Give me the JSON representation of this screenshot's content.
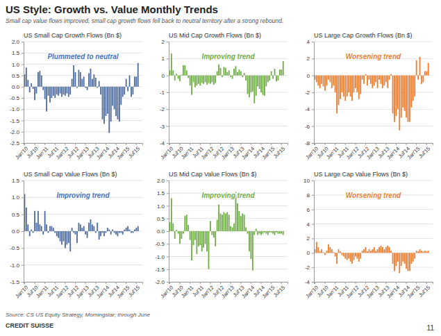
{
  "title": "US Style: Growth vs. Value Monthly Trends",
  "subtitle": "Small cap value flows improved, small cap growth flows fell back to neutral territory after a strong rebound.",
  "source": "Source: CS US Equity Strategy, Morningstar; through June",
  "page_number": "11",
  "brand": "CREDIT SUISSE",
  "chart_data": [
    {
      "type": "bar",
      "title": "US Small Cap Growth Flows (Bn $)",
      "annotations": [
        {
          "text": "Plummeted to neutral",
          "color": "#4472C4"
        }
      ],
      "color": "#4E6D9E",
      "grid": true,
      "categories": [
        "Jan'10",
        null,
        null,
        null,
        null,
        null,
        "Jul'10",
        null,
        null,
        null,
        null,
        null,
        "Jan'11",
        null,
        null,
        null,
        null,
        null,
        "Jul'11",
        null,
        null,
        null,
        null,
        null,
        "Jan'12",
        null,
        null,
        null,
        null,
        null,
        "Jul'12",
        null,
        null,
        null,
        null,
        null,
        "Jan'13",
        null,
        null,
        null,
        null,
        null,
        "Jul'13",
        null,
        null,
        null,
        null,
        null,
        "Jan'14",
        null,
        null,
        null,
        null,
        null,
        "Jul'14",
        null,
        null,
        null,
        null,
        null,
        "Jan'15",
        null,
        null,
        null,
        null,
        null,
        "Jul'15",
        null,
        null,
        null
      ],
      "values": [
        0.55,
        0.85,
        0.3,
        -0.25,
        0.15,
        -0.1,
        -0.6,
        -0.3,
        0.65,
        0.7,
        0.5,
        -0.15,
        -0.55,
        -1.1,
        -0.4,
        -0.7,
        -0.5,
        -0.4,
        -0.5,
        -0.35,
        -0.4,
        -0.3,
        -0.45,
        -0.35,
        -0.4,
        -0.3,
        -0.45,
        -0.35,
        0.35,
        0.95,
        0.65,
        -0.05,
        0.75,
        0.65,
        0.35,
        0.45,
        -0.05,
        -0.15,
        0.6,
        0.8,
        0.35,
        0.55,
        0.4,
        -0.05,
        0.25,
        -0.35,
        -1.45,
        -1.65,
        -1.3,
        -1.2,
        -2.05,
        -1.55,
        -0.85,
        -1.0,
        -1.3,
        -1.45,
        -1.55,
        -0.8,
        -0.45,
        -0.35,
        0.35,
        -0.2,
        0.5,
        -0.45,
        -0.35,
        0.45,
        0.45,
        1.05,
        0.0,
        0.0
      ],
      "ylim": [
        -2.5,
        2.0
      ],
      "yticks": [
        -2.5,
        {
          "value": -2.0,
          "label": "-2.0"
        },
        -1.5,
        {
          "value": -1.0,
          "label": "-1.0"
        },
        -0.5,
        {
          "value": 0.0,
          "label": "0.0"
        },
        0.5,
        {
          "value": 1.0,
          "label": "1.0"
        },
        1.5,
        {
          "value": 2.0,
          "label": "2.0"
        }
      ]
    },
    {
      "type": "bar",
      "title": "US Mid Cap Growth Flows (Bn $)",
      "annotations": [
        {
          "text": "Improving trend",
          "color": "#70AD47"
        }
      ],
      "color": "#70AD47",
      "grid": true,
      "categories": [
        "Jan'10",
        null,
        null,
        null,
        null,
        null,
        "Jul'10",
        null,
        null,
        null,
        null,
        null,
        "Jan'11",
        null,
        null,
        null,
        null,
        null,
        "Jul'11",
        null,
        null,
        null,
        null,
        null,
        "Jan'12",
        null,
        null,
        null,
        null,
        null,
        "Jul'12",
        null,
        null,
        null,
        null,
        null,
        "Jan'13",
        null,
        null,
        null,
        null,
        null,
        "Jul'13",
        null,
        null,
        null,
        null,
        null,
        "Jan'14",
        null,
        null,
        null,
        null,
        null,
        "Jul'14",
        null,
        null,
        null,
        null,
        null,
        "Jan'15",
        null,
        null,
        null,
        null,
        null,
        "Jul'15",
        null,
        null,
        null
      ],
      "values": [
        0.3,
        1.3,
        0.3,
        -0.3,
        0.1,
        -0.2,
        -0.35,
        0.05,
        0.6,
        0.6,
        0.3,
        -0.15,
        -0.6,
        -1.15,
        -0.4,
        -0.7,
        -0.6,
        -0.5,
        -0.6,
        -0.45,
        -0.5,
        -0.4,
        -0.55,
        -0.45,
        -0.5,
        -0.4,
        -0.55,
        -0.45,
        0.25,
        0.65,
        0.45,
        -0.1,
        0.5,
        0.45,
        0.2,
        0.3,
        -0.1,
        -0.2,
        0.4,
        0.55,
        0.2,
        0.35,
        0.25,
        -0.1,
        0.15,
        -0.3,
        -1.1,
        -1.3,
        -1.0,
        -0.95,
        -1.65,
        -1.2,
        -0.65,
        -0.8,
        -1.0,
        -1.15,
        -1.2,
        -0.65,
        -0.4,
        -0.3,
        0.25,
        -0.2,
        0.4,
        -0.35,
        -0.3,
        0.35,
        0.35,
        0.85,
        0.0,
        0.0
      ],
      "ylim": [
        -4.0,
        2.0
      ],
      "yticks": [
        -4,
        -3,
        -2,
        -1,
        0,
        1,
        2
      ]
    },
    {
      "type": "bar",
      "title": "US Large Cap Growth Flows (Bn $)",
      "annotations": [
        {
          "text": "Worsening trend",
          "color": "#ED7D31"
        }
      ],
      "color": "#ED7D31",
      "grid": true,
      "categories": [
        "Jan'10",
        null,
        null,
        null,
        null,
        null,
        "Jul'10",
        null,
        null,
        null,
        null,
        null,
        "Jan'11",
        null,
        null,
        null,
        null,
        null,
        "Jul'11",
        null,
        null,
        null,
        null,
        null,
        "Jan'12",
        null,
        null,
        null,
        null,
        null,
        "Jul'12",
        null,
        null,
        null,
        null,
        null,
        "Jan'13",
        null,
        null,
        null,
        null,
        null,
        "Jul'13",
        null,
        null,
        null,
        null,
        null,
        "Jan'14",
        null,
        null,
        null,
        null,
        null,
        "Jul'14",
        null,
        null,
        null,
        null,
        null,
        "Jan'15",
        null,
        null,
        null,
        null,
        null,
        "Jul'15",
        null,
        null,
        null
      ],
      "values": [
        -0.5,
        -0.8,
        -1.2,
        -1.5,
        -1.0,
        -1.3,
        -1.8,
        -1.2,
        -0.5,
        -0.8,
        -1.5,
        -1.2,
        -2.0,
        -4.5,
        -3.5,
        -2.8,
        -2.0,
        -2.5,
        -3.0,
        -2.5,
        -2.0,
        -2.5,
        -3.0,
        -2.0,
        -1.5,
        -2.0,
        -2.8,
        -2.2,
        -0.5,
        -1.0,
        0.15,
        -1.2,
        -0.5,
        -1.0,
        -1.5,
        -1.2,
        -0.8,
        -1.5,
        -0.5,
        -1.0,
        -1.5,
        -1.2,
        -0.8,
        -1.5,
        -0.5,
        0.15,
        -4.5,
        -5.5,
        -4.8,
        -4.0,
        -6.5,
        -5.0,
        -3.8,
        -4.2,
        -5.0,
        -5.5,
        -5.5,
        -3.8,
        -3.0,
        -2.5,
        1.8,
        -0.5,
        2.2,
        -1.0,
        -0.8,
        0.5,
        0.5,
        1.5,
        0.0,
        0.0
      ],
      "ylim": [
        -8.0,
        4.0
      ],
      "yticks": [
        -8,
        -6,
        -4,
        -2,
        0,
        2,
        4
      ]
    },
    {
      "type": "bar",
      "title": "US Small Cap Value Flows (Bn $)",
      "annotations": [
        {
          "text": "Improving trend",
          "color": "#4472C4"
        }
      ],
      "color": "#4E6D9E",
      "grid": true,
      "categories": [
        "Jan'10",
        null,
        null,
        null,
        null,
        null,
        "Jul'10",
        null,
        null,
        null,
        null,
        null,
        "Jan'11",
        null,
        null,
        null,
        null,
        null,
        "Jul'11",
        null,
        null,
        null,
        null,
        null,
        "Jan'12",
        null,
        null,
        null,
        null,
        null,
        "Jul'12",
        null,
        null,
        null,
        null,
        null,
        "Jan'13",
        null,
        null,
        null,
        null,
        null,
        "Jul'13",
        null,
        null,
        null,
        null,
        null,
        "Jan'14",
        null,
        null,
        null,
        null,
        null,
        "Jul'14",
        null,
        null,
        null,
        null,
        null,
        "Jan'15",
        null,
        null,
        null,
        null,
        null,
        "Jul'15",
        null,
        null,
        null
      ],
      "values": [
        1.1,
        0.7,
        0.2,
        -0.15,
        0.05,
        -0.05,
        0.6,
        0.25,
        0.6,
        0.2,
        0.15,
        -0.1,
        0.6,
        0.2,
        -0.05,
        0.15,
        0.15,
        0.1,
        -0.05,
        -0.15,
        -0.2,
        -0.3,
        -0.4,
        -0.3,
        -0.5,
        -0.4,
        -0.35,
        -0.6,
        0.1,
        -0.05,
        -0.1,
        -0.35,
        0.25,
        0.2,
        0.1,
        0.15,
        -0.1,
        -0.2,
        0.25,
        0.35,
        0.2,
        0.15,
        -0.05,
        0.25,
        -0.25,
        -0.15,
        -0.05,
        -0.15,
        -0.05,
        0.1,
        0.05,
        -0.1,
        0.05,
        -0.05,
        -0.1,
        -0.15,
        -0.05,
        -0.05,
        -0.1,
        0.05,
        0.1,
        0.15,
        0.05,
        -0.05,
        -0.05,
        0.05,
        0.1,
        0.15,
        0.0,
        0.0
      ],
      "ylim": [
        -1.5,
        1.5
      ],
      "yticks": [
        -1.5,
        {
          "value": -1.0,
          "label": "-1.0"
        },
        -0.5,
        {
          "value": 0.0,
          "label": "0.0"
        },
        0.5,
        {
          "value": 1.0,
          "label": "1.0"
        },
        1.5
      ]
    },
    {
      "type": "bar",
      "title": "US Mid Cap Value Flows (Bn $)",
      "annotations": [
        {
          "text": "Improving trend",
          "color": "#70AD47"
        }
      ],
      "color": "#70AD47",
      "grid": true,
      "categories": [
        "Jan'10",
        null,
        null,
        null,
        null,
        null,
        "Jul'10",
        null,
        null,
        null,
        null,
        null,
        "Jan'11",
        null,
        null,
        null,
        null,
        null,
        "Jul'11",
        null,
        null,
        null,
        null,
        null,
        "Jan'12",
        null,
        null,
        null,
        null,
        null,
        "Jul'12",
        null,
        null,
        null,
        null,
        null,
        "Jan'13",
        null,
        null,
        null,
        null,
        null,
        "Jul'13",
        null,
        null,
        null,
        null,
        null,
        "Jan'14",
        null,
        null,
        null,
        null,
        null,
        "Jul'14",
        null,
        null,
        null,
        null,
        null,
        "Jan'15",
        null,
        null,
        null,
        null,
        null,
        "Jul'15",
        null,
        null,
        null
      ],
      "values": [
        0.35,
        1.3,
        0.3,
        -0.3,
        0.05,
        -0.1,
        -0.5,
        -0.3,
        -0.1,
        0.6,
        0.65,
        0.25,
        -0.35,
        -1.15,
        -0.55,
        -0.35,
        -0.9,
        -0.6,
        -0.55,
        -0.8,
        -0.65,
        -0.5,
        -0.8,
        -1.5,
        0.4,
        -0.15,
        -0.25,
        -0.6,
        0.45,
        1.05,
        0.7,
        0.65,
        0.75,
        0.7,
        0.75,
        0.65,
        0.2,
        0.15,
        0.3,
        1.55,
        1.1,
        0.8,
        0.6,
        0.7,
        0.65,
        0.15,
        -0.1,
        -0.8,
        -1.1,
        -1.55,
        -0.15,
        0.1,
        -0.15,
        -0.1,
        -0.15,
        -0.1,
        -0.05,
        -0.1,
        -0.15,
        -0.05,
        -0.05,
        -0.1,
        -0.15,
        -0.05,
        -0.1,
        -0.1,
        -0.1,
        -0.15,
        0.0,
        0.0
      ],
      "ylim": [
        -2.0,
        2.0
      ],
      "yticks": [
        {
          "value": -2.0,
          "label": "-2.0"
        },
        -1.5,
        {
          "value": -1.0,
          "label": "-1.0"
        },
        -0.5,
        {
          "value": 0.0,
          "label": "0.0"
        },
        0.5,
        {
          "value": 1.0,
          "label": "1.0"
        },
        1.5,
        {
          "value": 2.0,
          "label": "2.0"
        }
      ]
    },
    {
      "type": "bar",
      "title": "US Large Cap Value Flows (Bn $)",
      "annotations": [
        {
          "text": "Worsening trend",
          "color": "#ED7D31"
        }
      ],
      "color": "#ED7D31",
      "grid": true,
      "categories": [
        "Jan'10",
        null,
        null,
        null,
        null,
        null,
        "Jul'10",
        null,
        null,
        null,
        null,
        null,
        "Jan'11",
        null,
        null,
        null,
        null,
        null,
        "Jul'11",
        null,
        null,
        null,
        null,
        null,
        "Jan'12",
        null,
        null,
        null,
        null,
        null,
        "Jul'12",
        null,
        null,
        null,
        null,
        null,
        "Jan'13",
        null,
        null,
        null,
        null,
        null,
        "Jul'13",
        null,
        null,
        null,
        null,
        null,
        "Jan'14",
        null,
        null,
        null,
        null,
        null,
        "Jul'14",
        null,
        null,
        null,
        null,
        null,
        "Jan'15",
        null,
        null,
        null,
        null,
        null,
        "Jul'15",
        null,
        null,
        null
      ],
      "values": [
        0.5,
        1.5,
        0.8,
        0.2,
        0.5,
        0.1,
        -0.3,
        0.3,
        1.2,
        0.8,
        0.5,
        0.1,
        -0.5,
        -1.5,
        0.5,
        0.2,
        -0.3,
        -0.5,
        -0.8,
        -1.0,
        -0.8,
        -1.2,
        -1.5,
        -1.0,
        -0.5,
        -0.8,
        -1.2,
        -0.8,
        0.3,
        0.5,
        0.8,
        0.2,
        0.5,
        0.3,
        0.5,
        0.8,
        0.3,
        0.5,
        0.8,
        1.0,
        0.8,
        0.5,
        0.8,
        1.0,
        0.8,
        0.3,
        -1.5,
        -2.5,
        -1.8,
        -1.2,
        -2.8,
        -1.8,
        -1.2,
        -1.5,
        -2.2,
        -2.5,
        -2.5,
        -1.5,
        -1.2,
        -0.8,
        0.3,
        0.2,
        0.5,
        0.3,
        0.2,
        0.3,
        0.2,
        0.3,
        0.0,
        0.0
      ],
      "ylim": [
        -4.0,
        10.0
      ],
      "yticks": [
        -4,
        -2,
        0,
        2,
        4,
        6,
        8,
        10
      ]
    }
  ]
}
